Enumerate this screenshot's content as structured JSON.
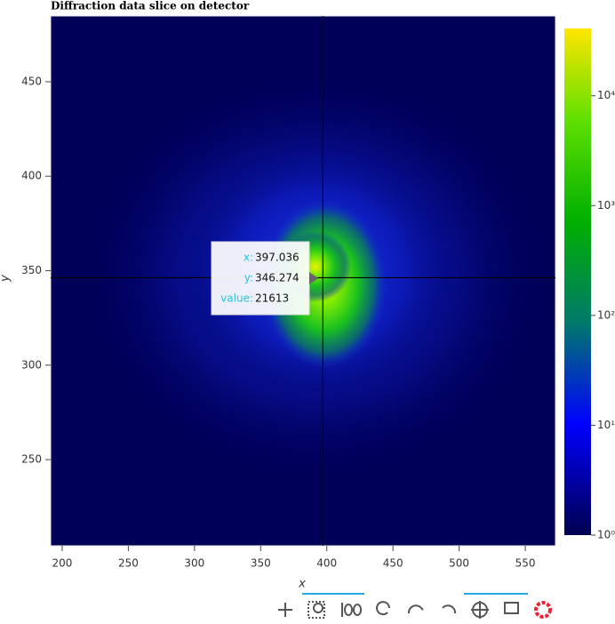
{
  "chart_data": {
    "type": "image",
    "title": "Diffraction data slice on detector",
    "x_label": "x",
    "y_label": "y",
    "xlim": [
      191.3,
      572.8
    ],
    "ylim": [
      204.4,
      484.8
    ],
    "xticks": [
      200,
      250,
      300,
      350,
      400,
      450,
      500,
      550
    ],
    "yticks": [
      250,
      300,
      350,
      400,
      450
    ],
    "colorbar": {
      "scale": "log",
      "lim": [
        1,
        41000
      ],
      "ticks": [
        {
          "value": 1,
          "label": "10⁰"
        },
        {
          "value": 10,
          "label": "10¹"
        },
        {
          "value": 100,
          "label": "10²"
        },
        {
          "value": 1000,
          "label": "10³"
        },
        {
          "value": 10000,
          "label": "10⁴"
        }
      ]
    },
    "tooltip": {
      "x_label": "x:",
      "x": 397.036,
      "y_label": "y:",
      "y": 346.274,
      "value_label": "value:",
      "value": 21613
    }
  }
}
